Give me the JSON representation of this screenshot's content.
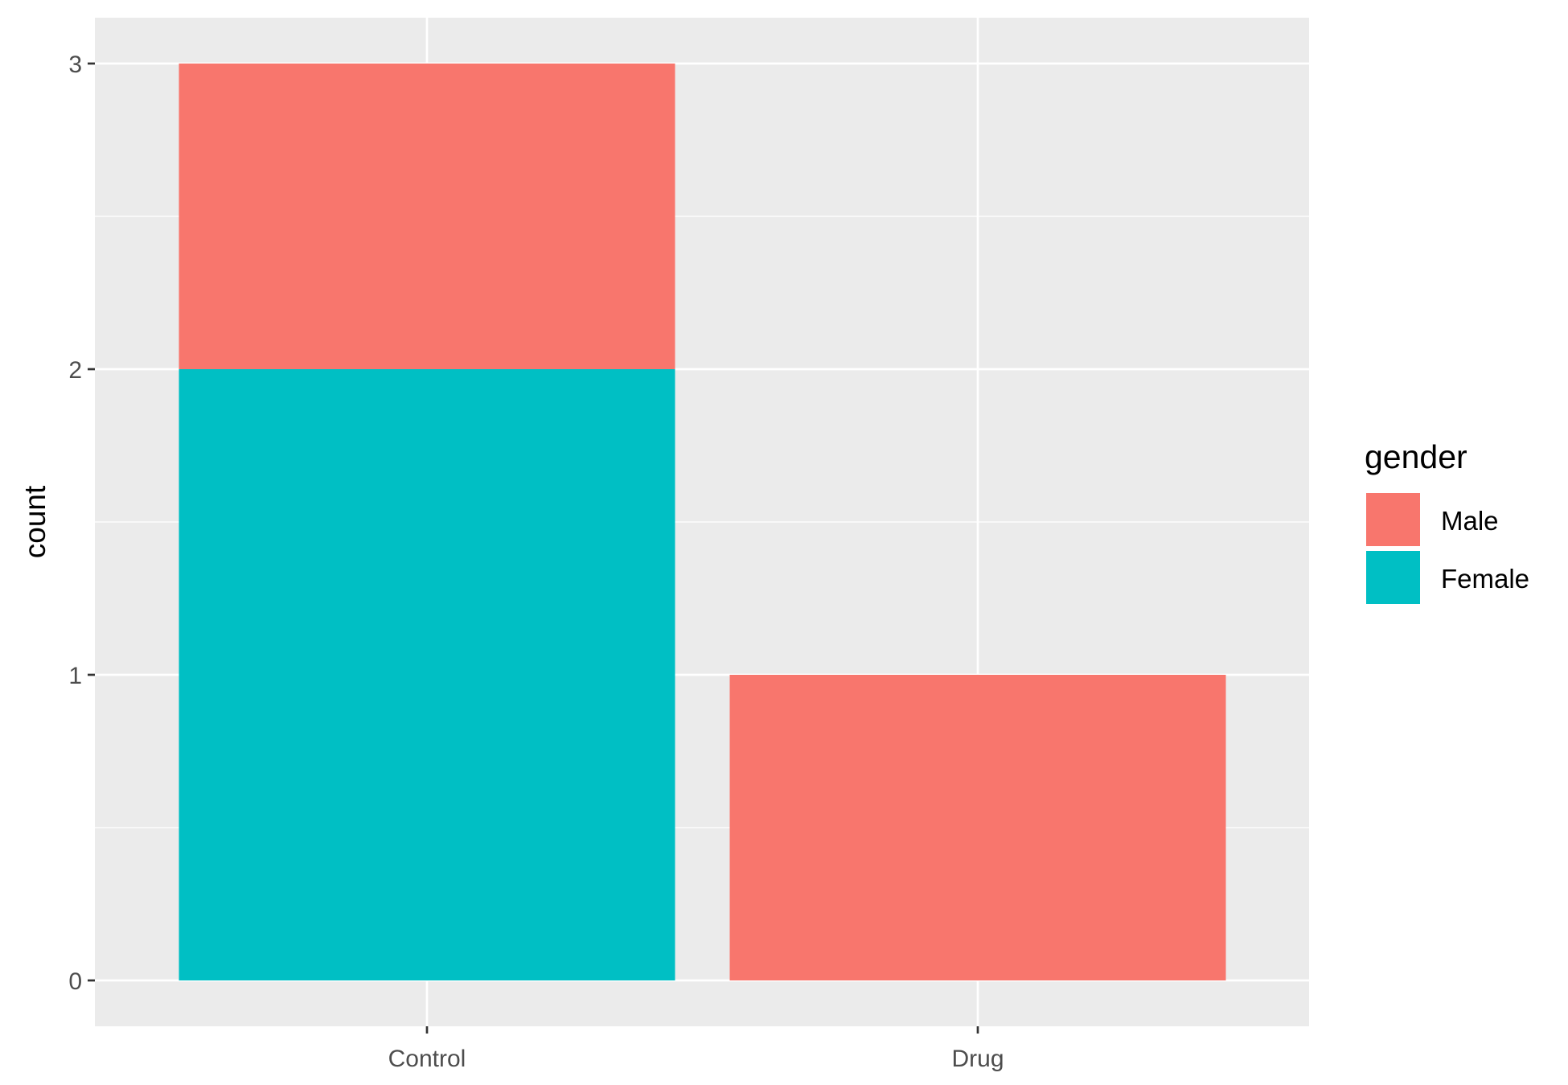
{
  "chart_data": {
    "type": "bar",
    "stacked": true,
    "categories": [
      "Control",
      "Drug"
    ],
    "series": [
      {
        "name": "Male",
        "values": [
          1,
          1
        ],
        "color": "#F8766D"
      },
      {
        "name": "Female",
        "values": [
          2,
          0
        ],
        "color": "#00BFC4"
      }
    ],
    "stack_order_bottom_to_top": [
      "Female",
      "Male"
    ],
    "xlabel": "",
    "ylabel": "count",
    "ylim": [
      -0.15,
      3.15
    ],
    "yticks": [
      0,
      1,
      2,
      3
    ],
    "ytick_labels": [
      "0",
      "1",
      "2",
      "3"
    ],
    "grid": true,
    "legend": {
      "title": "gender",
      "position": "right",
      "entries": [
        "Male",
        "Female"
      ]
    },
    "panel_background": "#EBEBEB",
    "grid_color": "#FFFFFF"
  }
}
